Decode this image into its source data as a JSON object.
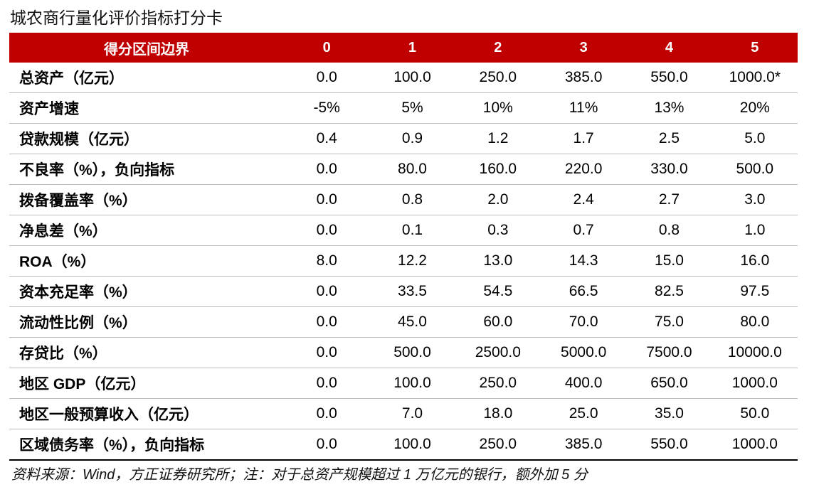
{
  "title": "城农商行量化评价指标打分卡",
  "table": {
    "header": [
      "得分区间边界",
      "0",
      "1",
      "2",
      "3",
      "4",
      "5"
    ],
    "rows": [
      [
        "总资产（亿元）",
        "0.0",
        "100.0",
        "250.0",
        "385.0",
        "550.0",
        "1000.0*"
      ],
      [
        "资产增速",
        "-5%",
        "5%",
        "10%",
        "11%",
        "13%",
        "20%"
      ],
      [
        "贷款规模（亿元）",
        "0.4",
        "0.9",
        "1.2",
        "1.7",
        "2.5",
        "5.0"
      ],
      [
        "不良率（%），负向指标",
        "0.0",
        "80.0",
        "160.0",
        "220.0",
        "330.0",
        "500.0"
      ],
      [
        "拨备覆盖率（%）",
        "0.0",
        "0.8",
        "2.0",
        "2.4",
        "2.7",
        "3.0"
      ],
      [
        "净息差（%）",
        "0.0",
        "0.1",
        "0.3",
        "0.7",
        "0.8",
        "1.0"
      ],
      [
        "ROA（%）",
        "8.0",
        "12.2",
        "13.0",
        "14.3",
        "15.0",
        "16.0"
      ],
      [
        "资本充足率（%）",
        "0.0",
        "33.5",
        "54.5",
        "66.5",
        "82.5",
        "97.5"
      ],
      [
        "流动性比例（%）",
        "0.0",
        "45.0",
        "60.0",
        "70.0",
        "75.0",
        "80.0"
      ],
      [
        "存贷比（%）",
        "0.0",
        "500.0",
        "2500.0",
        "5000.0",
        "7500.0",
        "10000.0"
      ],
      [
        "地区 GDP（亿元）",
        "0.0",
        "100.0",
        "250.0",
        "400.0",
        "650.0",
        "1000.0"
      ],
      [
        "地区一般预算收入（亿元）",
        "0.0",
        "7.0",
        "18.0",
        "25.0",
        "35.0",
        "50.0"
      ],
      [
        "区域债务率（%），负向指标",
        "0.0",
        "100.0",
        "250.0",
        "385.0",
        "550.0",
        "1000.0"
      ]
    ]
  },
  "footnote": "资料来源：Wind，方正证券研究所；注：对于总资产规模超过 1 万亿元的银行，额外加 5 分"
}
